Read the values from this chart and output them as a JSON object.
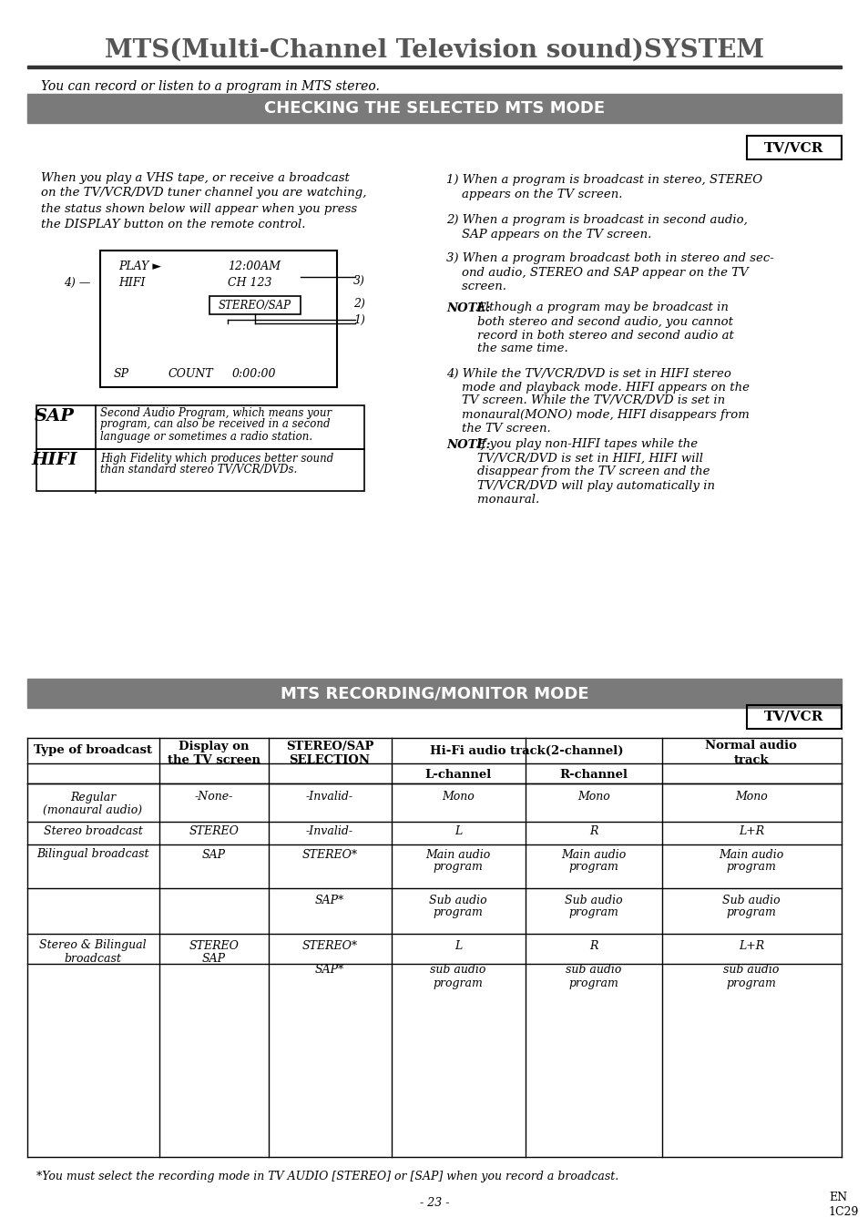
{
  "title": "MTS(Multi-Channel Television sound)SYSTEM",
  "subtitle": "You can record or listen to a program in MTS stereo.",
  "section1_header": "CHECKING THE SELECTED MTS MODE",
  "section2_header": "MTS RECORDING/MONITOR MODE",
  "tv_vcr_label": "TV/VCR",
  "left_para": "When you play a VHS tape, or receive a broadcast\non the TV/VCR/DVD tuner channel you are watching,\nthe status shown below will appear when you press\nthe DISPLAY button on the remote control.",
  "right_items": [
    "1) When a program is broadcast in stereo, STEREO\n    appears on the TV screen.",
    "2) When a program is broadcast in second audio,\n    SAP appears on the TV screen.",
    "3) When a program broadcast both in stereo and sec-\n    ond audio, STEREO and SAP appear on the TV\n    screen.",
    "NOTE: Although a program may be broadcast in\n        both stereo and second audio, you cannot\n        record in both stereo and second audio at\n        the same time.",
    "4) While the TV/VCR/DVD is set in HIFI stereo\n    mode and playback mode. HIFI appears on the\n    TV screen. While the TV/VCR/DVD is set in\n    monaural(MONO) mode, HIFI disappears from\n    the TV screen.",
    "NOTE: If you play non-HIFI tapes while the\n        TV/VCR/DVD is set in HIFI, HIFI will\n        disappear from the TV screen and the\n        TV/VCR/DVD will play automatically in\n        monaural."
  ],
  "footnote": "*You must select the recording mode in TV AUDIO [STEREO] or [SAP] when you record a broadcast.",
  "page_num": "- 23 -",
  "page_code": "EN\n1C29",
  "bg_color": "#ffffff",
  "header_bar_color": "#7a7a7a",
  "header_text_color": "#ffffff",
  "body_text_color": "#000000",
  "title_color": "#555555"
}
